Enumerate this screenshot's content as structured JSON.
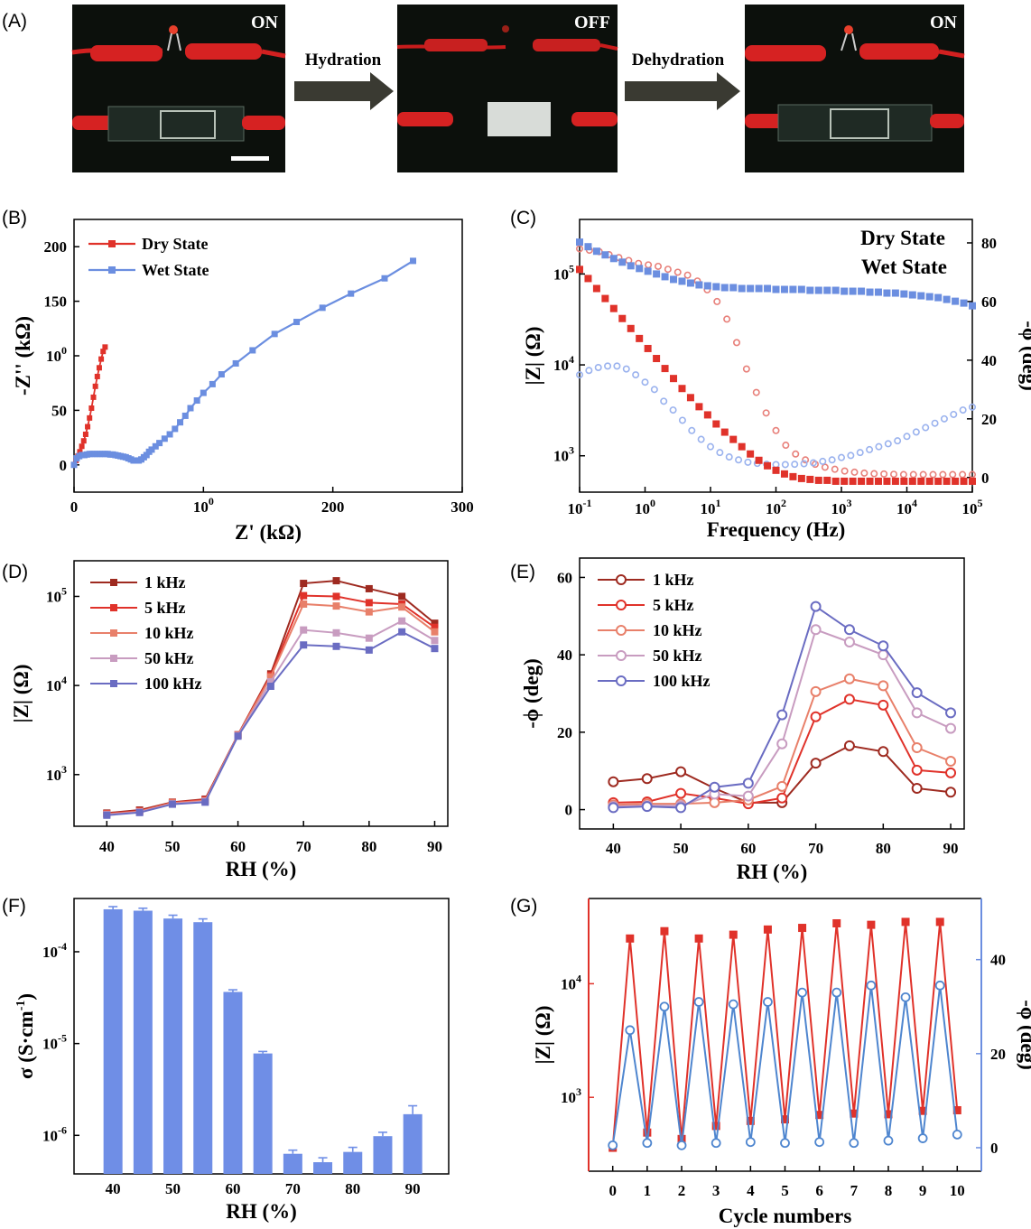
{
  "panel_a": {
    "label": "(A)",
    "photos": [
      {
        "status": "ON"
      },
      {
        "status": "OFF"
      },
      {
        "status": "ON"
      }
    ],
    "arrows": [
      "Hydration",
      "Dehydration"
    ]
  },
  "panel_labels": {
    "b": "(B)",
    "c": "(C)",
    "d": "(D)",
    "e": "(E)",
    "f": "(F)",
    "g": "(G)"
  },
  "colors": {
    "red": "#e0322a",
    "blue": "#6b8ee0",
    "bar": "#6f8ee6",
    "k1": "#9e2a20",
    "k5": "#e0322a",
    "k10": "#e8806a",
    "k50": "#c89cc0",
    "k100": "#6a6cc2"
  },
  "chart_data": [
    {
      "id": "B",
      "type": "line",
      "xlabel": "Z' (kΩ)",
      "ylabel": "-Z'' (kΩ)",
      "xlim": [
        0,
        300
      ],
      "ylim": [
        -25,
        225
      ],
      "xticks": [
        "0",
        "100",
        "200",
        "300"
      ],
      "yticks": [
        "0",
        "50",
        "100",
        "150",
        "200"
      ],
      "legend": "top-left",
      "series": [
        {
          "name": "Dry State",
          "x": [
            0,
            1.5,
            3,
            4.5,
            6,
            7.5,
            9,
            10.5,
            12,
            13.5,
            15,
            16.5,
            18,
            19.5,
            21,
            22.5,
            24
          ],
          "y": [
            0,
            4,
            8,
            12,
            17,
            22,
            28,
            35,
            43,
            52,
            62,
            72,
            81,
            89,
            97,
            104,
            108
          ]
        },
        {
          "name": "Wet State",
          "x": [
            0,
            2,
            4,
            6,
            8,
            10,
            12,
            14,
            16,
            18,
            20,
            22,
            24,
            26,
            28,
            30,
            32,
            34,
            36,
            38,
            40,
            42,
            44,
            46,
            48,
            50,
            52,
            54,
            56,
            58,
            60,
            63,
            66,
            70,
            74,
            78,
            82,
            86,
            90,
            95,
            100,
            107,
            114,
            125,
            138,
            155,
            172,
            192,
            214,
            240,
            262
          ],
          "y": [
            0,
            6,
            8,
            9,
            9,
            9.5,
            10,
            10,
            10,
            10,
            10,
            10,
            10,
            10,
            9.5,
            9.5,
            9,
            8.5,
            8,
            7.5,
            7,
            6,
            5,
            4,
            4,
            4,
            5,
            7,
            9,
            12,
            14,
            17,
            20,
            24,
            28,
            33,
            39,
            45,
            52,
            59,
            66,
            74,
            83,
            93,
            105,
            120,
            131,
            144,
            157,
            171,
            187
          ]
        }
      ]
    },
    {
      "id": "C",
      "type": "line",
      "xlabel": "Frequency (Hz)",
      "ylabel": "|Z| (Ω)",
      "ylabel_right": "-ϕ (deg)",
      "xscale": "log",
      "xlim": [
        0.1,
        100000
      ],
      "ylim_log10": [
        2.6,
        5.6
      ],
      "y2lim": [
        -5,
        88
      ],
      "xticks": [
        "10-1",
        "100",
        "101",
        "102",
        "103",
        "104",
        "105"
      ],
      "yticks": [
        "103",
        "104",
        "105"
      ],
      "y2ticks": [
        "0",
        "20",
        "40",
        "60",
        "80"
      ],
      "legend": "top-right",
      "series": [
        {
          "name": "Dry State",
          "axis": "left",
          "marker": "square",
          "x_log10": [
            -1,
            6
          ],
          "logZ": [
            5.05,
            4.95,
            4.84,
            4.73,
            4.62,
            4.51,
            4.4,
            4.29,
            4.18,
            4.07,
            3.96,
            3.85,
            3.74,
            3.64,
            3.54,
            3.45,
            3.35,
            3.26,
            3.18,
            3.1,
            3.02,
            2.95,
            2.89,
            2.84,
            2.8,
            2.77,
            2.75,
            2.74,
            2.73,
            2.73,
            2.72,
            2.72,
            2.72,
            2.72,
            2.72,
            2.72,
            2.72,
            2.72,
            2.72,
            2.72,
            2.72,
            2.72,
            2.72,
            2.72,
            2.72,
            2.72,
            2.72
          ]
        },
        {
          "name": "Wet State",
          "axis": "left",
          "marker": "square",
          "logZ": [
            5.35,
            5.3,
            5.25,
            5.21,
            5.17,
            5.13,
            5.09,
            5.06,
            5.03,
            5.0,
            4.97,
            4.94,
            4.92,
            4.9,
            4.88,
            4.87,
            4.86,
            4.85,
            4.85,
            4.84,
            4.84,
            4.84,
            4.84,
            4.83,
            4.83,
            4.83,
            4.83,
            4.82,
            4.82,
            4.82,
            4.82,
            4.81,
            4.81,
            4.81,
            4.8,
            4.8,
            4.79,
            4.79,
            4.78,
            4.77,
            4.76,
            4.75,
            4.74,
            4.72,
            4.7,
            4.68,
            4.65
          ]
        },
        {
          "name": "Dry State phase",
          "axis": "right",
          "marker": "open-circle",
          "phi": [
            78,
            77.5,
            77,
            76,
            75,
            74,
            73,
            72.5,
            72,
            71,
            70,
            69,
            67,
            64,
            60,
            54,
            46,
            37,
            29,
            22,
            16,
            11,
            8,
            6,
            4.5,
            3.5,
            2.8,
            2.2,
            1.8,
            1.5,
            1.3,
            1.2,
            1.1,
            1.0,
            1.0,
            1.0,
            1.0,
            1.0,
            1.0,
            1.0,
            1.0
          ]
        },
        {
          "name": "Wet State phase",
          "axis": "right",
          "marker": "open-circle",
          "phi": [
            35,
            36.5,
            37.5,
            38,
            38,
            37,
            35,
            32.5,
            30,
            26,
            23,
            19.5,
            16,
            13,
            10.5,
            8.5,
            7,
            6,
            5.2,
            4.8,
            4.5,
            4.4,
            4.4,
            4.5,
            4.7,
            5.0,
            5.5,
            6,
            6.8,
            7.5,
            8.5,
            9.5,
            10.5,
            11.5,
            12.5,
            14,
            15.5,
            17,
            18.5,
            20,
            21.5,
            23,
            24
          ]
        }
      ]
    },
    {
      "id": "D",
      "type": "line",
      "xlabel": "RH (%)",
      "ylabel": "|Z| (Ω)",
      "yscale": "log",
      "x": [
        40,
        45,
        50,
        55,
        60,
        65,
        70,
        75,
        80,
        85,
        90
      ],
      "xticks": [
        "40",
        "50",
        "60",
        "70",
        "80",
        "90"
      ],
      "yticks": [
        "103",
        "104",
        "105"
      ],
      "legend": "top-left",
      "series": [
        {
          "name": "1 kHz",
          "values": [
            370,
            400,
            490,
            530,
            2800,
            13500,
            140000,
            150000,
            122000,
            100000,
            50000
          ]
        },
        {
          "name": "5 kHz",
          "values": [
            365,
            390,
            485,
            520,
            2780,
            13000,
            102000,
            100000,
            85000,
            82000,
            45000
          ]
        },
        {
          "name": "10 kHz",
          "values": [
            360,
            385,
            480,
            510,
            2760,
            12500,
            82000,
            78000,
            67000,
            76000,
            40000
          ]
        },
        {
          "name": "50 kHz",
          "values": [
            355,
            380,
            470,
            500,
            2740,
            11000,
            42000,
            39000,
            34000,
            53000,
            32000
          ]
        },
        {
          "name": "100 kHz",
          "values": [
            350,
            375,
            465,
            490,
            2700,
            9800,
            28500,
            27500,
            25000,
            40000,
            26000
          ]
        }
      ]
    },
    {
      "id": "E",
      "type": "line",
      "xlabel": "RH (%)",
      "ylabel": "-ϕ (deg)",
      "x": [
        40,
        45,
        50,
        55,
        60,
        65,
        70,
        75,
        80,
        85,
        90
      ],
      "xticks": [
        "40",
        "50",
        "60",
        "70",
        "80",
        "90"
      ],
      "yticks": [
        "0",
        "20",
        "40",
        "60"
      ],
      "legend": "top-left",
      "series": [
        {
          "name": "1 kHz",
          "values": [
            7.2,
            8,
            9.8,
            5.5,
            1.8,
            1.8,
            12,
            16.5,
            15,
            5.5,
            4.5
          ]
        },
        {
          "name": "5 kHz",
          "values": [
            1.8,
            2,
            4.2,
            3,
            1.5,
            3,
            24,
            28.5,
            27,
            10.2,
            9.5
          ]
        },
        {
          "name": "10 kHz",
          "values": [
            1.2,
            1.5,
            1.5,
            1.8,
            2.5,
            6,
            30.5,
            33.8,
            32,
            16,
            12.5
          ]
        },
        {
          "name": "50 kHz",
          "values": [
            0.8,
            1,
            1,
            4,
            3.5,
            17,
            46.5,
            43.3,
            40,
            25,
            21
          ]
        },
        {
          "name": "100 kHz",
          "values": [
            0.5,
            0.8,
            0.5,
            5.8,
            6.8,
            24.5,
            52.5,
            46.5,
            42.3,
            30.2,
            25
          ]
        }
      ]
    },
    {
      "id": "F",
      "type": "bar",
      "xlabel": "RH (%)",
      "ylabel": "σ (S·cm-1)",
      "yscale": "log",
      "categories": [
        "40",
        "45",
        "50",
        "55",
        "60",
        "65",
        "70",
        "75",
        "80",
        "85",
        "90"
      ],
      "values": [
        0.00029,
        0.00028,
        0.00023,
        0.00021,
        3.65e-05,
        7.8e-06,
        6.3e-07,
        5.1e-07,
        6.6e-07,
        9.8e-07,
        1.7e-06
      ],
      "errors": [
        2e-05,
        1.8e-05,
        2e-05,
        1.8e-05,
        2e-06,
        4e-07,
        6e-08,
        6e-08,
        8e-08,
        1e-07,
        4e-07
      ],
      "xticks": [
        "40",
        "50",
        "60",
        "70",
        "80",
        "90"
      ],
      "yticks": [
        "10-6",
        "10-5",
        "10-4"
      ]
    },
    {
      "id": "G",
      "type": "line",
      "xlabel": "Cycle numbers",
      "ylabel": "|Z| (Ω)",
      "ylabel_right": "-ϕ (deg)",
      "yscale": "log",
      "xticks": [
        "0",
        "1",
        "2",
        "3",
        "4",
        "5",
        "6",
        "7",
        "8",
        "9",
        "10"
      ],
      "yticks": [
        "103",
        "104"
      ],
      "y2ticks": [
        "0",
        "20",
        "40"
      ],
      "series": [
        {
          "name": "|Z|",
          "axis": "left",
          "x": [
            0,
            0.5,
            1,
            1.5,
            2,
            2.5,
            3,
            3.5,
            4,
            4.5,
            5,
            5.5,
            6,
            6.5,
            7,
            7.5,
            8,
            8.5,
            9,
            9.5,
            10
          ],
          "values": [
            360,
            25000,
            490,
            29000,
            430,
            25000,
            560,
            27000,
            620,
            30000,
            640,
            31000,
            700,
            34000,
            720,
            33000,
            710,
            35000,
            760,
            35000,
            770
          ]
        },
        {
          "name": "-ϕ",
          "axis": "right",
          "x": [
            0,
            0.5,
            1,
            1.5,
            2,
            2.5,
            3,
            3.5,
            4,
            4.5,
            5,
            5.5,
            6,
            6.5,
            7,
            7.5,
            8,
            8.5,
            9,
            9.5,
            10
          ],
          "values": [
            0.5,
            25,
            1,
            30,
            0.5,
            31,
            1,
            30.5,
            1.2,
            31,
            1,
            33,
            1.2,
            33,
            1,
            34.5,
            1.5,
            32,
            2,
            34.5,
            2.8
          ]
        }
      ]
    }
  ]
}
